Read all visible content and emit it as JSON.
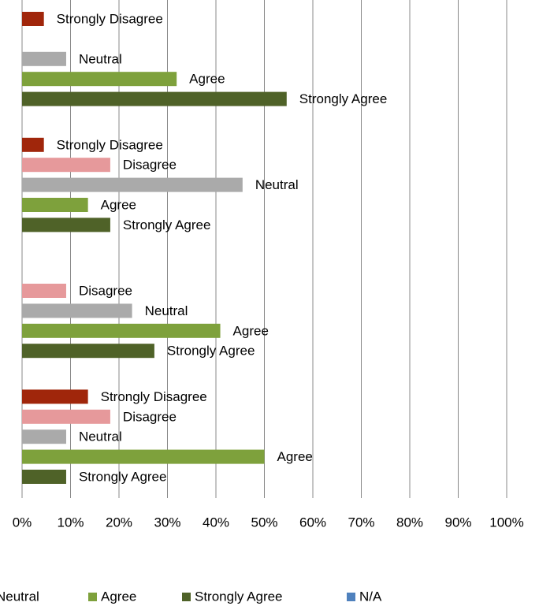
{
  "chart_data": {
    "type": "bar",
    "orientation": "horizontal",
    "categories": [
      null,
      null,
      null,
      null
    ],
    "series": [
      {
        "name": "Strongly Disagree",
        "color": "#a0260b",
        "values": [
          4.5,
          4.5,
          null,
          13.6
        ]
      },
      {
        "name": "Disagree",
        "color": "#e6999b",
        "values": [
          null,
          18.2,
          9.1,
          18.2
        ]
      },
      {
        "name": "Neutral",
        "color": "#aaaaaa",
        "values": [
          9.1,
          45.5,
          22.7,
          9.1
        ]
      },
      {
        "name": "Agree",
        "color": "#7ea13c",
        "values": [
          31.9,
          13.6,
          40.9,
          50
        ]
      },
      {
        "name": "Strongly Agree",
        "color": "#4f6228",
        "values": [
          54.6,
          18.2,
          27.3,
          9.1
        ]
      },
      {
        "name": "N/A",
        "color": "#4f81bd",
        "values": [
          null,
          null,
          null,
          null
        ]
      }
    ],
    "xlim": [
      0,
      100
    ],
    "xticks": [
      {
        "value": 0,
        "label": "0%"
      },
      {
        "value": 10,
        "label": "10%"
      },
      {
        "value": 20,
        "label": "20%"
      },
      {
        "value": 30,
        "label": "30%"
      },
      {
        "value": 40,
        "label": "40%"
      },
      {
        "value": 50,
        "label": "50%"
      },
      {
        "value": 60,
        "label": "60%"
      },
      {
        "value": 70,
        "label": "70%"
      },
      {
        "value": 80,
        "label": "80%"
      },
      {
        "value": 90,
        "label": "90%"
      },
      {
        "value": 100,
        "label": "100%"
      }
    ],
    "grid": true,
    "legend": "bottom"
  }
}
